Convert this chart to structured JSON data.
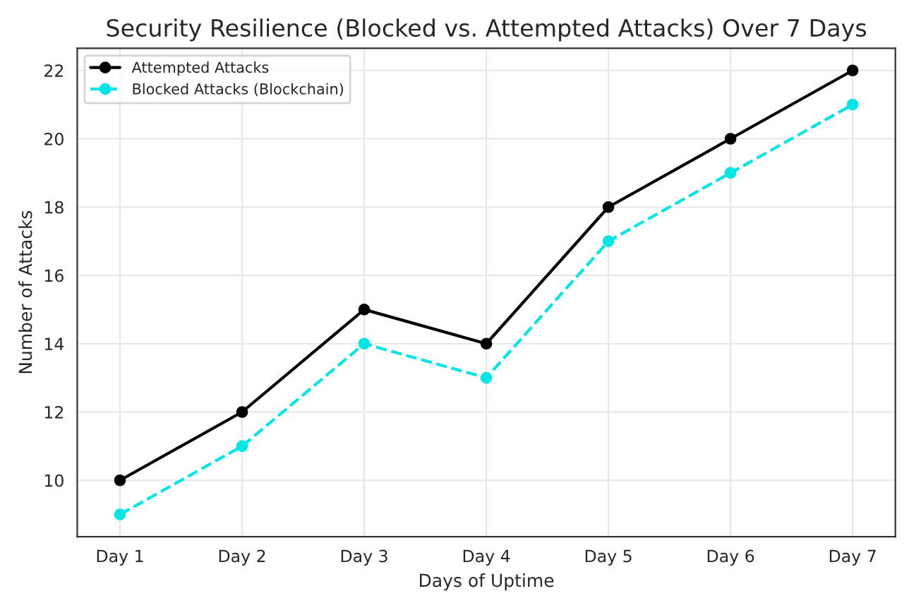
{
  "chart_data": {
    "type": "line",
    "title": "Security Resilience (Blocked vs. Attempted Attacks) Over 7 Days",
    "xlabel": "Days of Uptime",
    "ylabel": "Number of Attacks",
    "categories": [
      "Day 1",
      "Day 2",
      "Day 3",
      "Day 4",
      "Day 5",
      "Day 6",
      "Day 7"
    ],
    "series": [
      {
        "name": "Attempted Attacks",
        "color": "#000000",
        "values": [
          10,
          12,
          15,
          14,
          18,
          20,
          22
        ],
        "line_style": "solid"
      },
      {
        "name": "Blocked Attacks (Blockchain)",
        "color": "#00e5e5",
        "values": [
          9,
          11,
          14,
          13,
          17,
          19,
          21
        ],
        "line_style": "dashed"
      }
    ],
    "ylim": [
      8.35,
      22.65
    ],
    "yticks": [
      10,
      12,
      14,
      16,
      18,
      20,
      22
    ],
    "grid": true,
    "legend": "top left",
    "marker": "circle"
  }
}
